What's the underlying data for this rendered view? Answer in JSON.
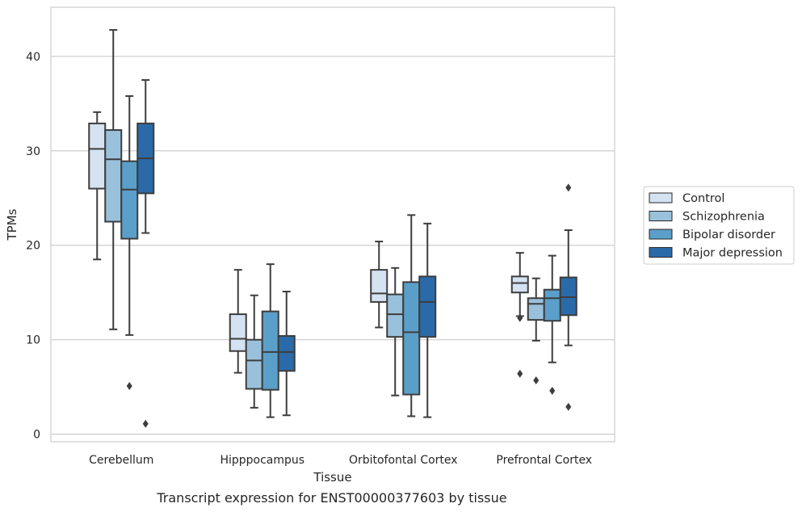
{
  "chart_data": {
    "type": "box",
    "caption": "Transcript expression for ENST00000377603 by tissue",
    "xlabel": "Tissue",
    "ylabel": "TPMs",
    "ylim": [
      -0.8,
      45.2
    ],
    "yticks": [
      0,
      10,
      20,
      30,
      40
    ],
    "grid": true,
    "legend_position": "right",
    "categories": [
      "Cerebellum",
      "Hipppocampus",
      "Orbitofontal Cortex",
      "Prefrontal Cortex"
    ],
    "series": [
      {
        "name": "Control",
        "color": "#d4e2f1",
        "boxes": [
          {
            "whislo": 18.5,
            "q1": 26.0,
            "med": 30.2,
            "q3": 32.9,
            "whishi": 34.1,
            "fliers": []
          },
          {
            "whislo": 6.5,
            "q1": 8.8,
            "med": 10.1,
            "q3": 12.7,
            "whishi": 17.4,
            "fliers": []
          },
          {
            "whislo": 11.3,
            "q1": 14.0,
            "med": 14.9,
            "q3": 17.4,
            "whishi": 20.4,
            "fliers": []
          },
          {
            "whislo": 12.5,
            "q1": 15.0,
            "med": 16.0,
            "q3": 16.7,
            "whishi": 19.2,
            "fliers": [
              12.3,
              6.4
            ]
          }
        ]
      },
      {
        "name": "Schizophrenia",
        "color": "#9ac1dc",
        "boxes": [
          {
            "whislo": 11.1,
            "q1": 22.5,
            "med": 29.1,
            "q3": 32.2,
            "whishi": 42.8,
            "fliers": []
          },
          {
            "whislo": 2.8,
            "q1": 4.8,
            "med": 7.8,
            "q3": 10.0,
            "whishi": 14.7,
            "fliers": []
          },
          {
            "whislo": 4.1,
            "q1": 10.3,
            "med": 12.7,
            "q3": 14.8,
            "whishi": 17.6,
            "fliers": []
          },
          {
            "whislo": 9.9,
            "q1": 12.1,
            "med": 13.8,
            "q3": 14.4,
            "whishi": 16.5,
            "fliers": [
              5.7
            ]
          }
        ]
      },
      {
        "name": "Bipolar disorder",
        "color": "#5a9fc9",
        "boxes": [
          {
            "whislo": 10.5,
            "q1": 20.7,
            "med": 25.9,
            "q3": 28.9,
            "whishi": 35.8,
            "fliers": [
              5.1
            ]
          },
          {
            "whislo": 1.8,
            "q1": 4.7,
            "med": 8.7,
            "q3": 13.0,
            "whishi": 18.0,
            "fliers": []
          },
          {
            "whislo": 1.9,
            "q1": 4.2,
            "med": 10.8,
            "q3": 16.1,
            "whishi": 23.2,
            "fliers": []
          },
          {
            "whislo": 7.6,
            "q1": 12.0,
            "med": 14.4,
            "q3": 15.3,
            "whishi": 18.9,
            "fliers": [
              4.6
            ]
          }
        ]
      },
      {
        "name": "Major depression",
        "color": "#2b6aa8",
        "boxes": [
          {
            "whislo": 21.3,
            "q1": 25.5,
            "med": 29.2,
            "q3": 32.9,
            "whishi": 37.5,
            "fliers": [
              1.1
            ]
          },
          {
            "whislo": 2.0,
            "q1": 6.7,
            "med": 8.7,
            "q3": 10.4,
            "whishi": 15.1,
            "fliers": []
          },
          {
            "whislo": 1.8,
            "q1": 10.3,
            "med": 14.0,
            "q3": 16.7,
            "whishi": 22.3,
            "fliers": []
          },
          {
            "whislo": 9.4,
            "q1": 12.6,
            "med": 14.5,
            "q3": 16.6,
            "whishi": 21.6,
            "fliers": [
              26.1,
              2.9
            ]
          }
        ]
      }
    ]
  }
}
